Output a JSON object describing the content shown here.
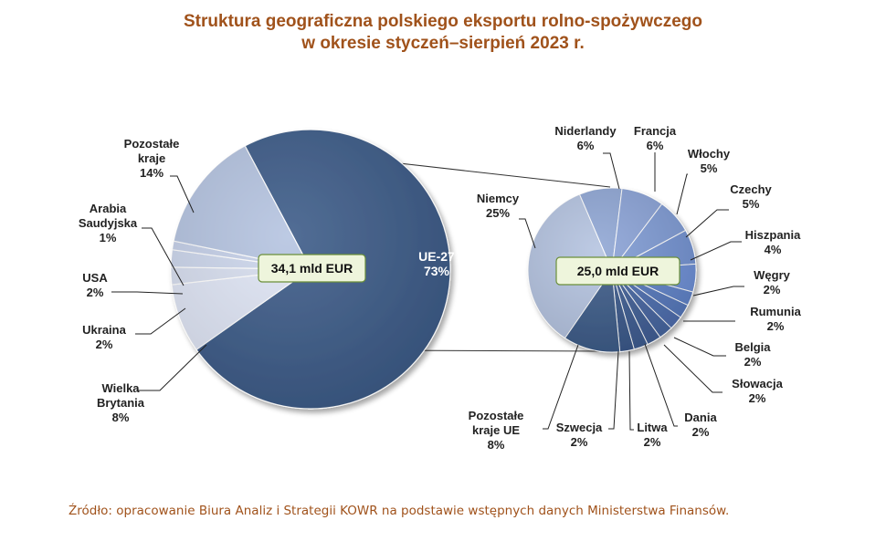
{
  "title": {
    "line1": "Struktura geograficzna polskiego eksportu rolno-spożywczego",
    "line2": "w okresie styczeń–sierpień 2023 r."
  },
  "source": "Źródło: opracowanie Biura Analiz i Strategii KOWR na podstawie wstępnych danych Ministerstwa Finansów.",
  "colors": {
    "title": "#a0521b",
    "eu": "#3b5a87",
    "light_blue": "#b4c3e0",
    "pale": "#dfe5f5",
    "box_fill": "#eef5dc",
    "box_border": "#6b8f3a"
  },
  "chart_data": [
    {
      "type": "pie",
      "center_label": "34,1 mld EUR",
      "slices": [
        {
          "name": "UE-27",
          "value": 73,
          "label_line1": "UE-27",
          "label_pct": "73%"
        },
        {
          "name": "Wielka Brytania",
          "value": 8,
          "label_line1": "Wielka",
          "label_line2": "Brytania",
          "label_pct": "8%"
        },
        {
          "name": "Ukraina",
          "value": 2,
          "label_line1": "Ukraina",
          "label_pct": "2%"
        },
        {
          "name": "USA",
          "value": 2,
          "label_line1": "USA",
          "label_pct": "2%"
        },
        {
          "name": "Arabia Saudyjska",
          "value": 1,
          "label_line1": "Arabia",
          "label_line2": "Saudyjska",
          "label_pct": "1%"
        },
        {
          "name": "Pozostałe kraje",
          "value": 14,
          "label_line1": "Pozostałe",
          "label_line2": "kraje",
          "label_pct": "14%"
        }
      ]
    },
    {
      "type": "pie",
      "center_label": "25,0 mld EUR",
      "slices": [
        {
          "name": "Niemcy",
          "value": 25,
          "label_line1": "Niemcy",
          "label_pct": "25%"
        },
        {
          "name": "Niderlandy",
          "value": 6,
          "label_line1": "Niderlandy",
          "label_pct": "6%"
        },
        {
          "name": "Francja",
          "value": 6,
          "label_line1": "Francja",
          "label_pct": "6%"
        },
        {
          "name": "Włochy",
          "value": 5,
          "label_line1": "Włochy",
          "label_pct": "5%"
        },
        {
          "name": "Czechy",
          "value": 5,
          "label_line1": "Czechy",
          "label_pct": "5%"
        },
        {
          "name": "Hiszpania",
          "value": 4,
          "label_line1": "Hiszpania",
          "label_pct": "4%"
        },
        {
          "name": "Węgry",
          "value": 2,
          "label_line1": "Węgry",
          "label_pct": "2%"
        },
        {
          "name": "Rumunia",
          "value": 2,
          "label_line1": "Rumunia",
          "label_pct": "2%"
        },
        {
          "name": "Belgia",
          "value": 2,
          "label_line1": "Belgia",
          "label_pct": "2%"
        },
        {
          "name": "Słowacja",
          "value": 2,
          "label_line1": "Słowacja",
          "label_pct": "2%"
        },
        {
          "name": "Dania",
          "value": 2,
          "label_line1": "Dania",
          "label_pct": "2%"
        },
        {
          "name": "Litwa",
          "value": 2,
          "label_line1": "Litwa",
          "label_pct": "2%"
        },
        {
          "name": "Szwecja",
          "value": 2,
          "label_line1": "Szwecja",
          "label_pct": "2%"
        },
        {
          "name": "Pozostałe kraje UE",
          "value": 8,
          "label_line1": "Pozostałe",
          "label_line2": "kraje UE",
          "label_pct": "8%"
        }
      ]
    }
  ]
}
